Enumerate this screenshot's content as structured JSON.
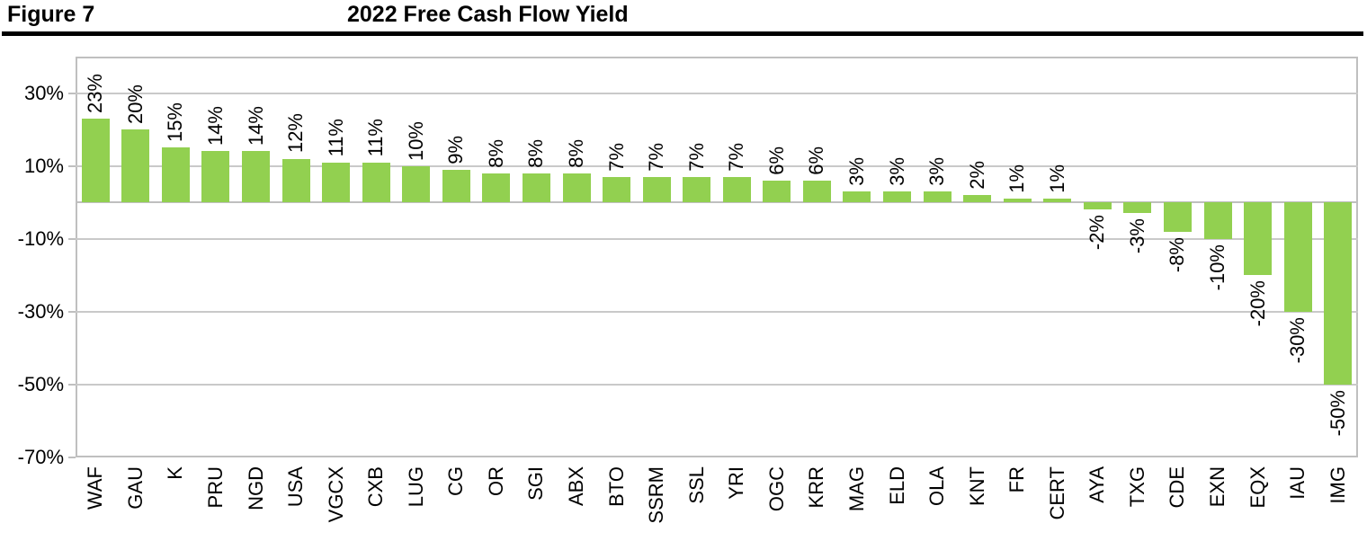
{
  "header": {
    "figure_label": "Figure 7",
    "title": "2022 Free Cash Flow Yield"
  },
  "chart_data": {
    "type": "bar",
    "title": "2022 Free Cash Flow Yield",
    "categories": [
      "WAF",
      "GAU",
      "K",
      "PRU",
      "NGD",
      "USA",
      "VGCX",
      "CXB",
      "LUG",
      "CG",
      "OR",
      "SGI",
      "ABX",
      "BTO",
      "SSRM",
      "SSL",
      "YRI",
      "OGC",
      "KRR",
      "MAG",
      "ELD",
      "OLA",
      "KNT",
      "FR",
      "CERT",
      "AYA",
      "TXG",
      "CDE",
      "EXN",
      "EQX",
      "IAU",
      "IMG"
    ],
    "values": [
      23,
      20,
      15,
      14,
      14,
      12,
      11,
      11,
      10,
      9,
      8,
      8,
      8,
      7,
      7,
      7,
      7,
      6,
      6,
      3,
      3,
      3,
      2,
      1,
      1,
      -2,
      -3,
      -8,
      -10,
      -20,
      -30,
      -50
    ],
    "value_label_suffix": "%",
    "xlabel": "",
    "ylabel": "",
    "ylim": [
      -70,
      40
    ],
    "y_ticks": [
      30,
      10,
      -10,
      -30,
      -50,
      -70
    ],
    "y_tick_labels": [
      "30%",
      "10%",
      "-10%",
      "-30%",
      "-50%",
      "-70%"
    ],
    "grid": true,
    "legend_position": "none",
    "bar_color": "#92D050",
    "gridline_color": "#C9C9C9",
    "axis_color": "#BFBFBF",
    "label_rotation_degrees": 90
  }
}
